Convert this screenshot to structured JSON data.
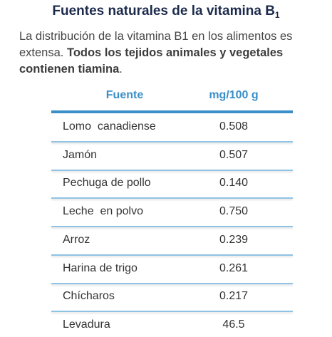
{
  "header": {
    "title": "Fuentes naturales de la vitamina B",
    "title_sub": "1"
  },
  "intro": {
    "text": "La distribución de la vitamina B1 en los alimentos es extensa. ",
    "bold": "Todos los tejidos animales y vegetales contienen tiamina",
    "end": "."
  },
  "table": {
    "columns": [
      "Fuente",
      "mg/100 g"
    ],
    "rows": [
      [
        "Lomo  canadiense",
        "0.508"
      ],
      [
        "Jamón",
        "0.507"
      ],
      [
        "Pechuga de pollo",
        "0.140"
      ],
      [
        "Leche  en polvo",
        "0.750"
      ],
      [
        "Arroz",
        "0.239"
      ],
      [
        "Harina de trigo",
        "0.261"
      ],
      [
        "Chícharos",
        "0.217"
      ],
      [
        "Levadura",
        "46.5"
      ]
    ]
  }
}
